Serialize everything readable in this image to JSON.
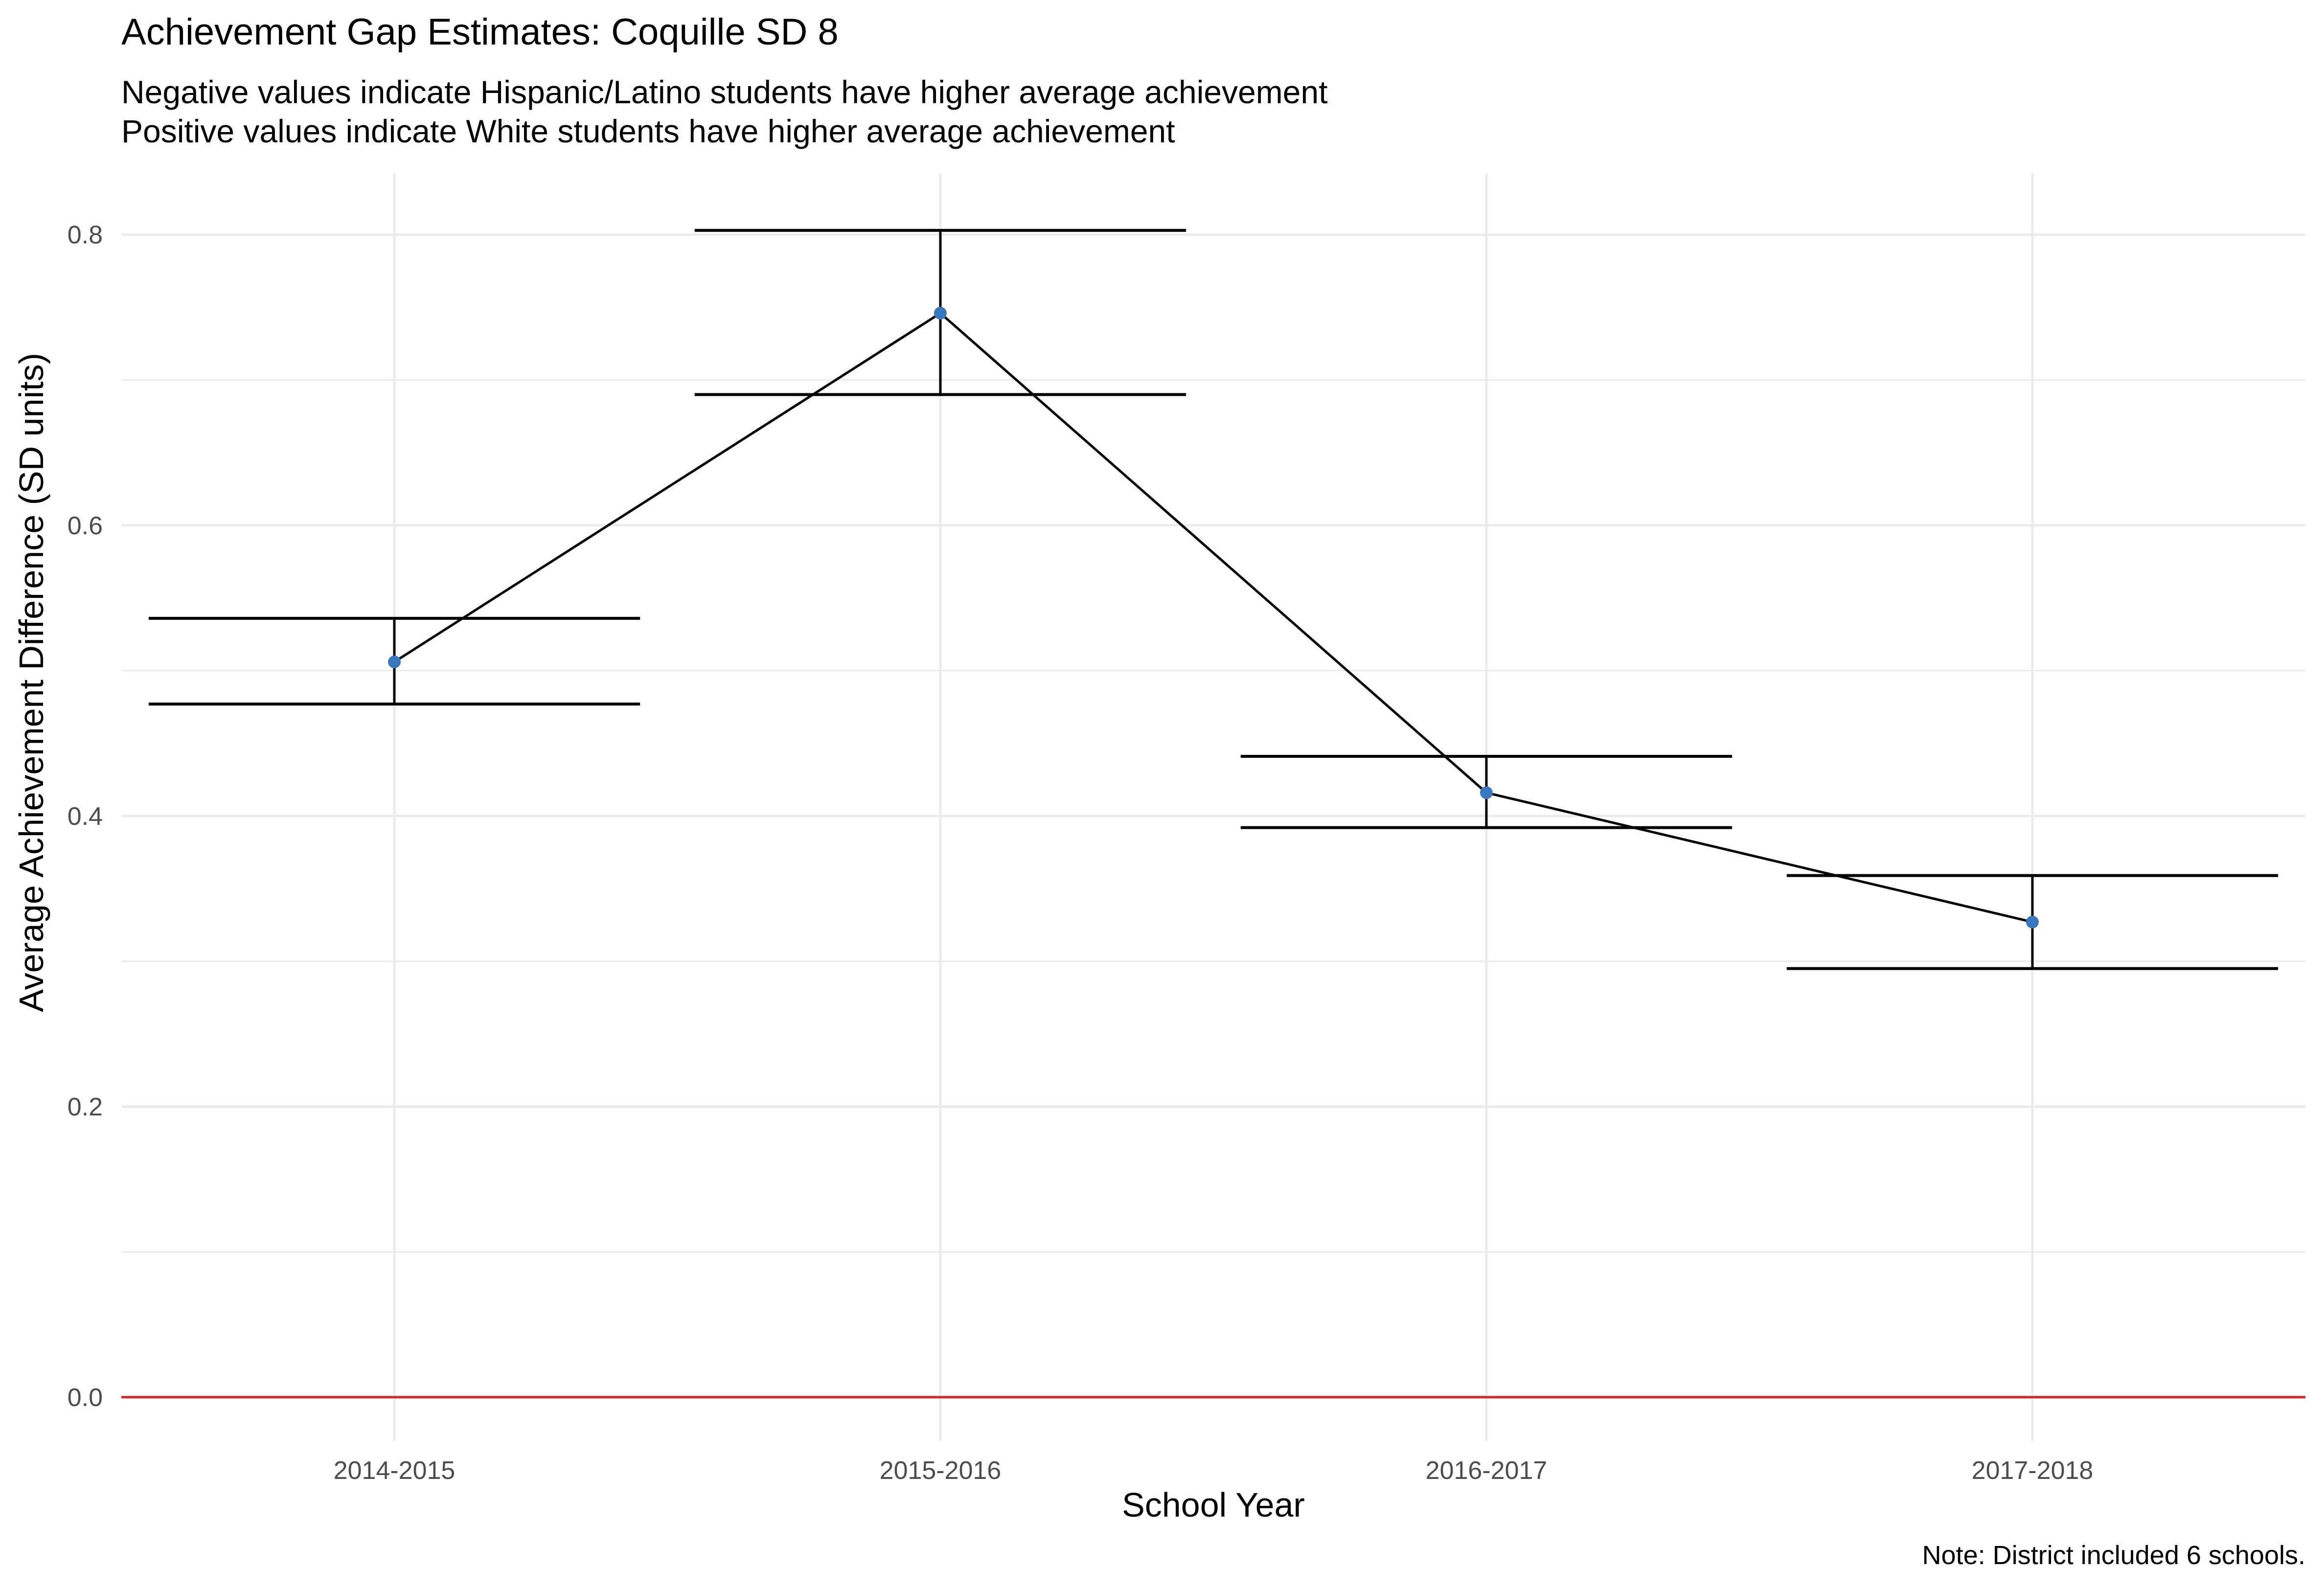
{
  "chart_data": {
    "type": "line",
    "title": "Achievement Gap Estimates: Coquille SD 8",
    "subtitle_lines": [
      "Negative values indicate Hispanic/Latino students have higher average achievement",
      "Positive values indicate White students have higher average achievement"
    ],
    "caption": "Note: District included 6 schools.",
    "xlabel": "School Year",
    "ylabel": "Average Achievement Difference (SD units)",
    "categories": [
      "2014-2015",
      "2015-2016",
      "2016-2017",
      "2017-2018"
    ],
    "series": [
      {
        "values": [
          0.506,
          0.746,
          0.416,
          0.327
        ],
        "lower": [
          0.477,
          0.69,
          0.392,
          0.295
        ],
        "upper": [
          0.536,
          0.803,
          0.441,
          0.359
        ]
      }
    ],
    "y_ticks": [
      0.0,
      0.2,
      0.4,
      0.6,
      0.8
    ],
    "ylim": [
      -0.03,
      0.842
    ],
    "reference_line": 0,
    "colors": {
      "point": "#3778bf",
      "line": "#000000",
      "errorbar": "#000000",
      "reference_line": "#d62728",
      "grid": "#ebebeb",
      "tick_label": "#4d4d4d"
    },
    "grid": true,
    "legend": "none"
  }
}
